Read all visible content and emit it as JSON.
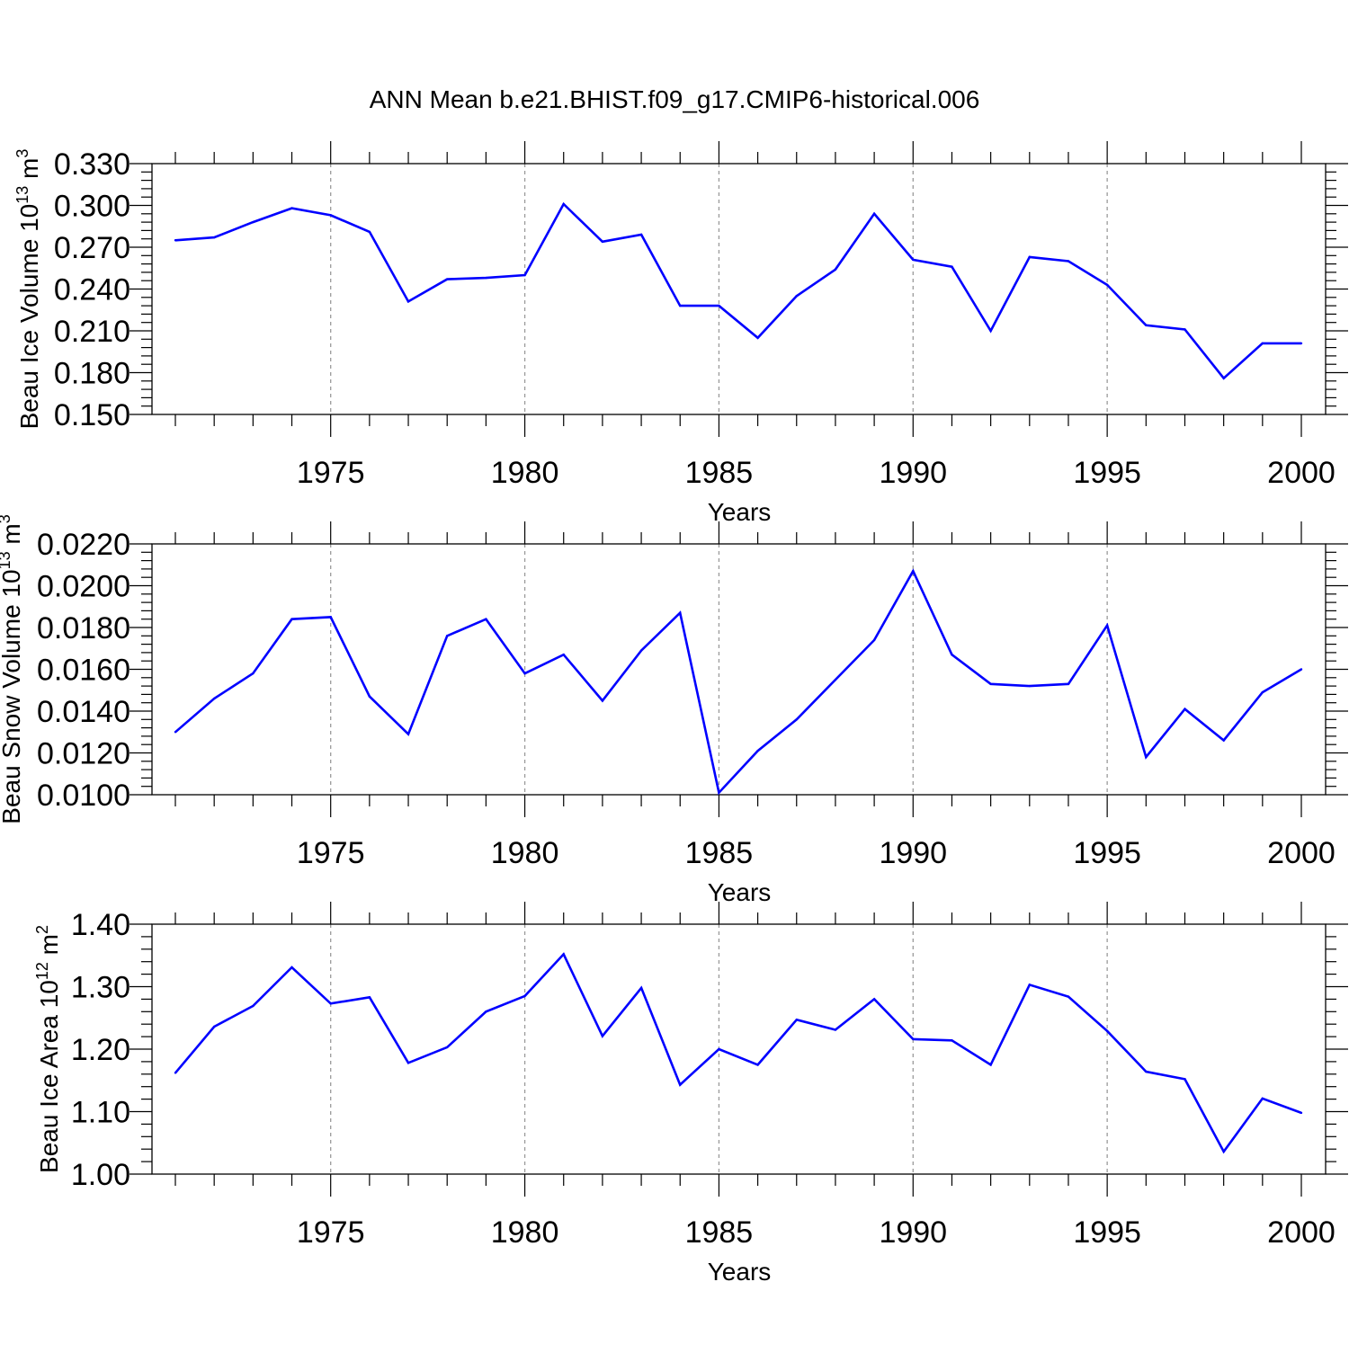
{
  "title": "ANN Mean b.e21.BHIST.f09_g17.CMIP6-historical.006",
  "line_color": "#0000ff",
  "chart_data": [
    {
      "type": "line",
      "title": "ANN Mean b.e21.BHIST.f09_g17.CMIP6-historical.006",
      "ylabel_main": "Beau Ice Volume 10",
      "ylabel_exp": "13",
      "ylabel_unit": " m",
      "ylabel_unit_exp": "3",
      "xlabel": "Years",
      "xlim": [
        1971,
        2000
      ],
      "ylim": [
        0.15,
        0.33
      ],
      "yticks": [
        0.15,
        0.18,
        0.21,
        0.24,
        0.27,
        0.3,
        0.33
      ],
      "ytick_labels": [
        "0.150",
        "0.180",
        "0.210",
        "0.240",
        "0.270",
        "0.300",
        "0.330"
      ],
      "xticks": [
        1975,
        1980,
        1985,
        1990,
        1995,
        2000
      ],
      "xtick_labels": [
        "1975",
        "1980",
        "1985",
        "1990",
        "1995",
        "2000"
      ],
      "grid": "vertical dashed at major x ticks",
      "x": [
        1971,
        1972,
        1973,
        1974,
        1975,
        1976,
        1977,
        1978,
        1979,
        1980,
        1981,
        1982,
        1983,
        1984,
        1985,
        1986,
        1987,
        1988,
        1989,
        1990,
        1991,
        1992,
        1993,
        1994,
        1995,
        1996,
        1997,
        1998,
        1999,
        2000
      ],
      "values": [
        0.275,
        0.277,
        0.288,
        0.298,
        0.293,
        0.281,
        0.231,
        0.247,
        0.248,
        0.25,
        0.301,
        0.274,
        0.279,
        0.228,
        0.228,
        0.205,
        0.235,
        0.254,
        0.294,
        0.261,
        0.256,
        0.21,
        0.263,
        0.26,
        0.243,
        0.214,
        0.211,
        0.176,
        0.201,
        0.201
      ]
    },
    {
      "type": "line",
      "ylabel_main": "Beau Snow Volume 10",
      "ylabel_exp": "13",
      "ylabel_unit": " m",
      "ylabel_unit_exp": "3",
      "xlabel": "Years",
      "xlim": [
        1971,
        2000
      ],
      "ylim": [
        0.01,
        0.022
      ],
      "yticks": [
        0.01,
        0.012,
        0.014,
        0.016,
        0.018,
        0.02,
        0.022
      ],
      "ytick_labels": [
        "0.0100",
        "0.0120",
        "0.0140",
        "0.0160",
        "0.0180",
        "0.0200",
        "0.0220"
      ],
      "xticks": [
        1975,
        1980,
        1985,
        1990,
        1995,
        2000
      ],
      "xtick_labels": [
        "1975",
        "1980",
        "1985",
        "1990",
        "1995",
        "2000"
      ],
      "grid": "vertical dashed at major x ticks",
      "x": [
        1971,
        1972,
        1973,
        1974,
        1975,
        1976,
        1977,
        1978,
        1979,
        1980,
        1981,
        1982,
        1983,
        1984,
        1985,
        1986,
        1987,
        1988,
        1989,
        1990,
        1991,
        1992,
        1993,
        1994,
        1995,
        1996,
        1997,
        1998,
        1999,
        2000
      ],
      "values": [
        0.013,
        0.0146,
        0.0158,
        0.0184,
        0.0185,
        0.0147,
        0.0129,
        0.0176,
        0.0184,
        0.0158,
        0.0167,
        0.0145,
        0.0169,
        0.0187,
        0.0101,
        0.0121,
        0.0136,
        0.0155,
        0.0174,
        0.0207,
        0.0167,
        0.0153,
        0.0152,
        0.0153,
        0.0181,
        0.0118,
        0.0141,
        0.0126,
        0.0149,
        0.016
      ]
    },
    {
      "type": "line",
      "ylabel_main": "Beau Ice Area 10",
      "ylabel_exp": "12",
      "ylabel_unit": " m",
      "ylabel_unit_exp": "2",
      "xlabel": "Years",
      "xlim": [
        1971,
        2000
      ],
      "ylim": [
        1.0,
        1.4
      ],
      "yticks": [
        1.0,
        1.1,
        1.2,
        1.3,
        1.4
      ],
      "ytick_labels": [
        "1.00",
        "1.10",
        "1.20",
        "1.30",
        "1.40"
      ],
      "xticks": [
        1975,
        1980,
        1985,
        1990,
        1995,
        2000
      ],
      "xtick_labels": [
        "1975",
        "1980",
        "1985",
        "1990",
        "1995",
        "2000"
      ],
      "grid": "vertical dashed at major x ticks",
      "x": [
        1971,
        1972,
        1973,
        1974,
        1975,
        1976,
        1977,
        1978,
        1979,
        1980,
        1981,
        1982,
        1983,
        1984,
        1985,
        1986,
        1987,
        1988,
        1989,
        1990,
        1991,
        1992,
        1993,
        1994,
        1995,
        1996,
        1997,
        1998,
        1999,
        2000
      ],
      "values": [
        1.162,
        1.236,
        1.269,
        1.331,
        1.273,
        1.283,
        1.178,
        1.203,
        1.26,
        1.285,
        1.352,
        1.221,
        1.298,
        1.143,
        1.2,
        1.175,
        1.247,
        1.231,
        1.28,
        1.216,
        1.214,
        1.175,
        1.303,
        1.284,
        1.229,
        1.164,
        1.152,
        1.036,
        1.121,
        1.098
      ]
    }
  ]
}
